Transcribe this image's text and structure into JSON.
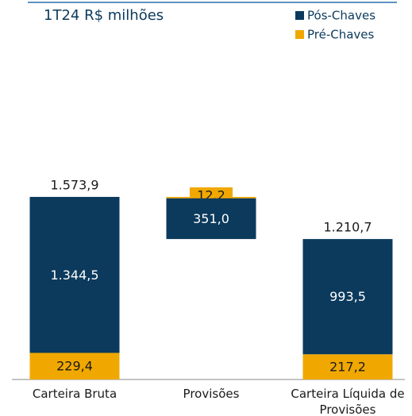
{
  "chart_data": {
    "type": "waterfall",
    "title": "1T24 R$ milhões",
    "categories": [
      "Carteira Bruta",
      "Provisões",
      "Carteira Líquida de Provisões"
    ],
    "steps": [
      "absolute",
      "relative",
      "absolute"
    ],
    "series": [
      {
        "name": "Pós-Chaves",
        "color": "#0b3a5c",
        "values": [
          1344.5,
          351.0,
          993.5
        ],
        "value_labels": [
          "1.344,5",
          "351,0",
          "993,5"
        ]
      },
      {
        "name": "Pré-Chaves",
        "color": "#f0a800",
        "values": [
          229.4,
          12.2,
          217.2
        ],
        "value_labels": [
          "229,4",
          "12,2",
          "217,2"
        ]
      }
    ],
    "totals": [
      1573.9,
      null,
      1210.7
    ],
    "total_labels": [
      "1.573,9",
      null,
      "1.210,7"
    ],
    "ylim": [
      0,
      1800
    ],
    "legend": "top-right"
  }
}
